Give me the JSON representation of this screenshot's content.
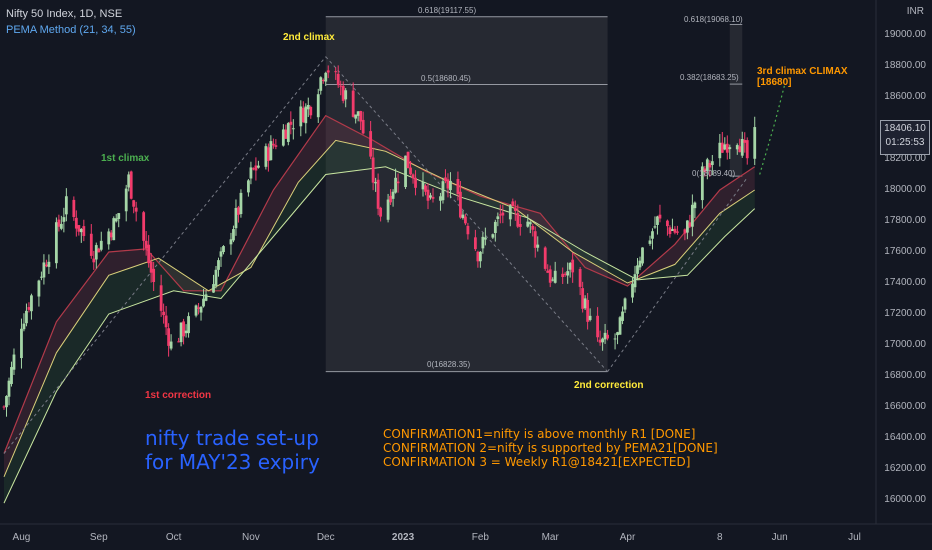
{
  "header": {
    "symbol": "Nifty 50 Index, 1D, NSE",
    "indicator": "PEMA Method (21, 34, 55)"
  },
  "axis": {
    "currency": "INR",
    "y_ticks": [
      "19000.00",
      "18800.00",
      "18600.00",
      "18400.00",
      "18200.00",
      "18000.00",
      "17800.00",
      "17600.00",
      "17400.00",
      "17200.00",
      "17000.00",
      "16800.00",
      "16600.00",
      "16400.00",
      "16200.00",
      "16000.00"
    ],
    "x_ticks": [
      "Aug",
      "Sep",
      "Oct",
      "Nov",
      "Dec",
      "2023",
      "Feb",
      "Mar",
      "Apr",
      "8",
      "Jun",
      "Jul"
    ]
  },
  "last_price": {
    "value": "18406.10",
    "countdown": "01:25:53"
  },
  "annotations": {
    "first_climax": "1st climax",
    "second_climax": "2nd climax",
    "third_climax_line1": "3rd climax CLIMAX",
    "third_climax_line2": "[18680]",
    "first_correction": "1st correction",
    "second_correction": "2nd correction",
    "title_line1": "nifty trade set-up",
    "title_line2": "for MAY'23 expiry",
    "confirmation1": "CONFIRMATION1=nifty is above monthly R1 [DONE]",
    "confirmation2": "CONFIRMATION 2=nifty is supported by PEMA21[DONE]",
    "confirmation3": "CONFIRMATION 3 = Weekly R1@18421[EXPECTED]"
  },
  "fib_left": {
    "f618": "0.618(19117.55)",
    "f5": "0.5(18680.45)",
    "f0": "0(16828.35)"
  },
  "fib_right": {
    "f618": "0.618(19068.10)",
    "f382": "0.382(18683.25)",
    "f0": "0(18089.40)"
  },
  "colors": {
    "up": "#a5d6a7",
    "down": "#f23b6b",
    "ema21": "#b23a4a",
    "ema34": "#d9d07a",
    "ema55": "#c8e6a0",
    "bg": "#131722",
    "accent": "#ff9800"
  },
  "chart_data": {
    "type": "candlestick",
    "y_unit": "INR",
    "ylim": [
      15900,
      19150
    ],
    "waypoints": [
      {
        "date": "2022-07-25",
        "close": 16600
      },
      {
        "date": "2022-08-01",
        "close": 17150
      },
      {
        "date": "2022-08-12",
        "close": 17600
      },
      {
        "date": "2022-08-19",
        "close": 17900
      },
      {
        "date": "2022-08-30",
        "close": 17600
      },
      {
        "date": "2022-09-08",
        "close": 17800
      },
      {
        "date": "2022-09-13",
        "close": 18070
      },
      {
        "date": "2022-09-23",
        "close": 17400
      },
      {
        "date": "2022-09-30",
        "close": 17000
      },
      {
        "date": "2022-10-10",
        "close": 17200
      },
      {
        "date": "2022-10-20",
        "close": 17550
      },
      {
        "date": "2022-11-01",
        "close": 18100
      },
      {
        "date": "2022-11-15",
        "close": 18400
      },
      {
        "date": "2022-11-25",
        "close": 18550
      },
      {
        "date": "2022-12-01",
        "close": 18810
      },
      {
        "date": "2022-12-15",
        "close": 18450
      },
      {
        "date": "2022-12-23",
        "close": 17850
      },
      {
        "date": "2023-01-02",
        "close": 18200
      },
      {
        "date": "2023-01-12",
        "close": 17900
      },
      {
        "date": "2023-01-20",
        "close": 18050
      },
      {
        "date": "2023-01-31",
        "close": 17600
      },
      {
        "date": "2023-02-10",
        "close": 17850
      },
      {
        "date": "2023-02-20",
        "close": 17800
      },
      {
        "date": "2023-03-02",
        "close": 17400
      },
      {
        "date": "2023-03-10",
        "close": 17500
      },
      {
        "date": "2023-03-20",
        "close": 17000
      },
      {
        "date": "2023-03-28",
        "close": 17050
      },
      {
        "date": "2023-04-05",
        "close": 17550
      },
      {
        "date": "2023-04-13",
        "close": 17800
      },
      {
        "date": "2023-04-24",
        "close": 17700
      },
      {
        "date": "2023-05-01",
        "close": 18100
      },
      {
        "date": "2023-05-10",
        "close": 18300
      },
      {
        "date": "2023-05-15",
        "close": 18350
      },
      {
        "date": "2023-05-19",
        "close": 18200
      },
      {
        "date": "2023-05-22",
        "close": 18406
      }
    ],
    "ema21": [
      {
        "date": "2022-07-25",
        "value": 16300
      },
      {
        "date": "2022-08-15",
        "value": 17150
      },
      {
        "date": "2022-09-05",
        "value": 17600
      },
      {
        "date": "2022-09-20",
        "value": 17620
      },
      {
        "date": "2022-10-05",
        "value": 17350
      },
      {
        "date": "2022-10-20",
        "value": 17350
      },
      {
        "date": "2022-11-10",
        "value": 18000
      },
      {
        "date": "2022-12-01",
        "value": 18480
      },
      {
        "date": "2022-12-20",
        "value": 18320
      },
      {
        "date": "2023-01-10",
        "value": 18120
      },
      {
        "date": "2023-02-01",
        "value": 17960
      },
      {
        "date": "2023-02-25",
        "value": 17850
      },
      {
        "date": "2023-03-15",
        "value": 17500
      },
      {
        "date": "2023-04-01",
        "value": 17380
      },
      {
        "date": "2023-04-20",
        "value": 17650
      },
      {
        "date": "2023-05-08",
        "value": 18000
      },
      {
        "date": "2023-05-22",
        "value": 18150
      }
    ],
    "ema34": [
      {
        "date": "2022-07-25",
        "value": 16150
      },
      {
        "date": "2022-08-15",
        "value": 16950
      },
      {
        "date": "2022-09-05",
        "value": 17450
      },
      {
        "date": "2022-09-25",
        "value": 17560
      },
      {
        "date": "2022-10-15",
        "value": 17350
      },
      {
        "date": "2022-11-01",
        "value": 17500
      },
      {
        "date": "2022-11-20",
        "value": 18050
      },
      {
        "date": "2022-12-05",
        "value": 18320
      },
      {
        "date": "2022-12-25",
        "value": 18250
      },
      {
        "date": "2023-01-20",
        "value": 18050
      },
      {
        "date": "2023-02-15",
        "value": 17880
      },
      {
        "date": "2023-03-10",
        "value": 17600
      },
      {
        "date": "2023-04-01",
        "value": 17400
      },
      {
        "date": "2023-04-20",
        "value": 17520
      },
      {
        "date": "2023-05-08",
        "value": 17850
      },
      {
        "date": "2023-05-22",
        "value": 18000
      }
    ],
    "ema55": [
      {
        "date": "2022-07-25",
        "value": 15980
      },
      {
        "date": "2022-08-15",
        "value": 16700
      },
      {
        "date": "2022-09-05",
        "value": 17200
      },
      {
        "date": "2022-10-01",
        "value": 17350
      },
      {
        "date": "2022-10-20",
        "value": 17300
      },
      {
        "date": "2022-11-10",
        "value": 17700
      },
      {
        "date": "2022-12-01",
        "value": 18100
      },
      {
        "date": "2022-12-25",
        "value": 18150
      },
      {
        "date": "2023-01-25",
        "value": 17950
      },
      {
        "date": "2023-02-20",
        "value": 17820
      },
      {
        "date": "2023-03-15",
        "value": 17600
      },
      {
        "date": "2023-04-05",
        "value": 17420
      },
      {
        "date": "2023-04-25",
        "value": 17450
      },
      {
        "date": "2023-05-10",
        "value": 17700
      },
      {
        "date": "2023-05-22",
        "value": 17880
      }
    ],
    "trendlines": [
      {
        "from": {
          "date": "2022-07-25",
          "value": 16300
        },
        "to": {
          "date": "2022-12-01",
          "value": 18860
        }
      },
      {
        "from": {
          "date": "2022-12-01",
          "value": 18860
        },
        "to": {
          "date": "2023-03-24",
          "value": 16828
        }
      },
      {
        "from": {
          "date": "2023-03-24",
          "value": 16828
        },
        "to": {
          "date": "2023-05-19",
          "value": 18080
        }
      }
    ],
    "projection": [
      {
        "date": "2023-05-24",
        "value": 18100
      },
      {
        "date": "2023-05-30",
        "value": 18430
      },
      {
        "date": "2023-06-03",
        "value": 18680
      }
    ],
    "fib_box_left": {
      "from": "2022-12-01",
      "to": "2023-03-24",
      "levels": [
        19117.55,
        18680.45,
        16828.35
      ]
    },
    "fib_box_right": {
      "from": "2023-05-12",
      "to": "2023-05-17",
      "levels": [
        19068.1,
        18683.25,
        18089.4
      ]
    }
  }
}
